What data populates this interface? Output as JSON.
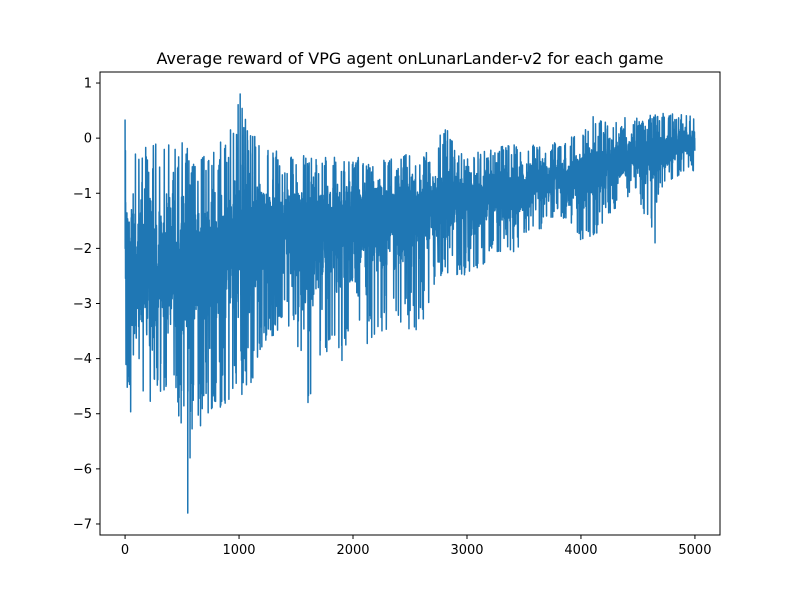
{
  "chart_data": {
    "type": "line",
    "title": "Average reward of VPG agent onLunarLander-v2 for each game",
    "xlabel": "",
    "ylabel": "",
    "xlim": [
      -220,
      5220
    ],
    "ylim": [
      -7.2,
      1.2
    ],
    "xticks": [
      0,
      1000,
      2000,
      3000,
      4000,
      5000
    ],
    "xtick_labels": [
      "0",
      "1000",
      "2000",
      "3000",
      "4000",
      "5000"
    ],
    "yticks": [
      -7,
      -6,
      -5,
      -4,
      -3,
      -2,
      -1,
      0,
      1
    ],
    "ytick_labels": [
      "−7",
      "−6",
      "−5",
      "−4",
      "−3",
      "−2",
      "−1",
      "0",
      "1"
    ],
    "grid": false,
    "series": [
      {
        "color": "#1f77b4",
        "n_points": 5000,
        "x": [
          0,
          100,
          200,
          300,
          400,
          500,
          600,
          700,
          800,
          900,
          1000,
          1100,
          1200,
          1300,
          1400,
          1500,
          1600,
          1700,
          1800,
          1900,
          2000,
          2100,
          2200,
          2300,
          2400,
          2500,
          2600,
          2700,
          2800,
          2900,
          3000,
          3100,
          3200,
          3300,
          3400,
          3500,
          3600,
          3700,
          3800,
          3900,
          4000,
          4100,
          4200,
          4300,
          4400,
          4500,
          4600,
          4700,
          4800,
          4900,
          5000
        ],
        "upper": [
          0.35,
          0.1,
          0.0,
          -0.1,
          0.0,
          0.1,
          -0.1,
          -0.1,
          -0.1,
          0.0,
          0.8,
          0.2,
          0.1,
          -0.2,
          -0.3,
          -0.3,
          -0.3,
          -0.4,
          -0.3,
          -0.4,
          -0.3,
          -0.4,
          -0.3,
          -0.3,
          -0.3,
          -0.3,
          -0.2,
          -0.3,
          0.3,
          -0.2,
          -0.3,
          -0.2,
          -0.2,
          -0.1,
          -0.1,
          -0.1,
          -0.05,
          -0.1,
          0.0,
          0.05,
          0.2,
          0.4,
          0.3,
          0.4,
          0.4,
          0.4,
          0.45,
          0.5,
          0.45,
          0.5,
          0.4
        ],
        "lower": [
          -4.7,
          -5.4,
          -5.1,
          -4.6,
          -4.9,
          -5.5,
          -5.3,
          -5.2,
          -4.9,
          -4.9,
          -4.7,
          -4.6,
          -4.0,
          -3.7,
          -3.3,
          -3.6,
          -5.2,
          -4.1,
          -3.9,
          -4.1,
          -4.3,
          -3.8,
          -3.7,
          -3.5,
          -3.4,
          -3.7,
          -3.5,
          -2.8,
          -2.6,
          -2.5,
          -2.5,
          -2.4,
          -2.2,
          -2.1,
          -2.1,
          -1.9,
          -1.7,
          -1.6,
          -1.5,
          -1.6,
          -1.9,
          -1.9,
          -1.5,
          -1.3,
          -1.1,
          -1.0,
          -1.9,
          -0.9,
          -0.8,
          -0.6,
          -0.6
        ],
        "mean": [
          -2.2,
          -2.4,
          -2.3,
          -2.2,
          -2.2,
          -2.2,
          -2.1,
          -2.0,
          -2.0,
          -1.9,
          -1.8,
          -1.8,
          -1.7,
          -1.7,
          -1.6,
          -1.6,
          -1.6,
          -1.5,
          -1.5,
          -1.4,
          -1.4,
          -1.4,
          -1.3,
          -1.3,
          -1.3,
          -1.2,
          -1.2,
          -1.2,
          -1.1,
          -1.1,
          -1.1,
          -1.0,
          -1.0,
          -0.9,
          -0.9,
          -0.9,
          -0.8,
          -0.8,
          -0.7,
          -0.7,
          -0.6,
          -0.5,
          -0.5,
          -0.4,
          -0.4,
          -0.3,
          -0.3,
          -0.2,
          -0.2,
          -0.1,
          -0.1
        ],
        "extremes": [
          {
            "x": 550,
            "y": -6.8
          },
          {
            "x": 570,
            "y": -5.8
          },
          {
            "x": 1010,
            "y": 0.8
          },
          {
            "x": 4650,
            "y": -1.9
          }
        ]
      }
    ]
  }
}
